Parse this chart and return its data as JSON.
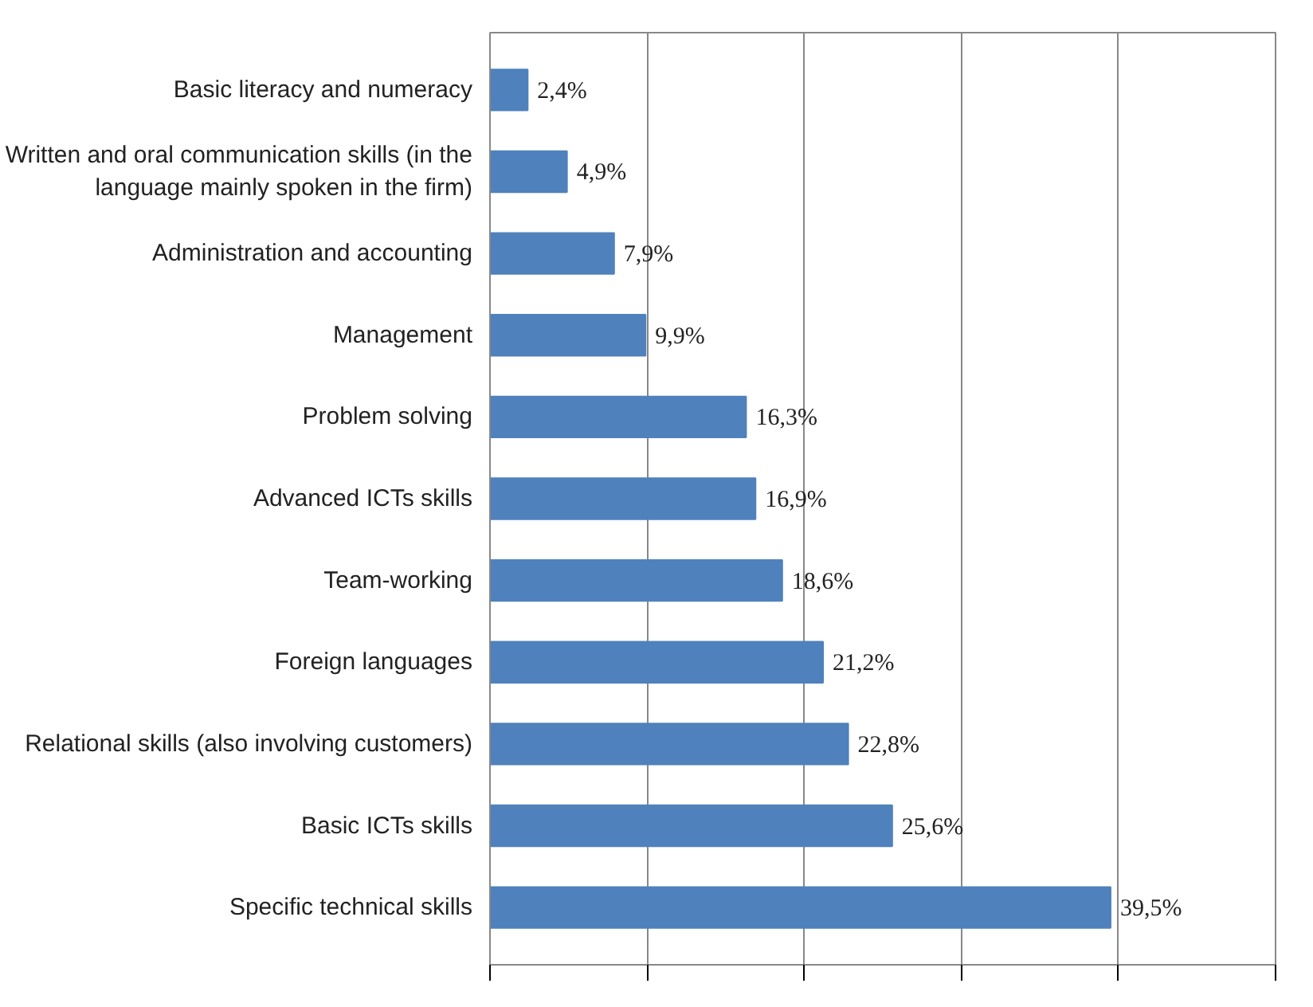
{
  "chart_data": {
    "type": "bar",
    "orientation": "horizontal",
    "categories": [
      "Basic literacy and numeracy",
      "Written and oral communication skills (in the language mainly spoken in the firm)",
      "Administration and accounting",
      "Management",
      "Problem solving",
      "Advanced ICTs skills",
      "Team-working",
      "Foreign languages",
      "Relational skills (also involving customers)",
      "Basic ICTs skills",
      "Specific technical skills"
    ],
    "values": [
      2.4,
      4.9,
      7.9,
      9.9,
      16.3,
      16.9,
      18.6,
      21.2,
      22.8,
      25.6,
      39.5
    ],
    "value_labels": [
      "2,4%",
      "4,9%",
      "7,9%",
      "9,9%",
      "16,3%",
      "16,9%",
      "18,6%",
      "21,2%",
      "22,8%",
      "25,6%",
      "39,5%"
    ],
    "color": "#4f81bd",
    "xlim": [
      0,
      50
    ],
    "xticks": [
      {
        "value": 0,
        "label": null
      },
      {
        "value": 10,
        "label": null
      },
      {
        "value": 20,
        "label": null
      },
      {
        "value": 30,
        "label": null
      },
      {
        "value": 40,
        "label": null
      },
      {
        "value": 50,
        "label": null
      }
    ],
    "tick_labels": "y",
    "grid": "x"
  }
}
